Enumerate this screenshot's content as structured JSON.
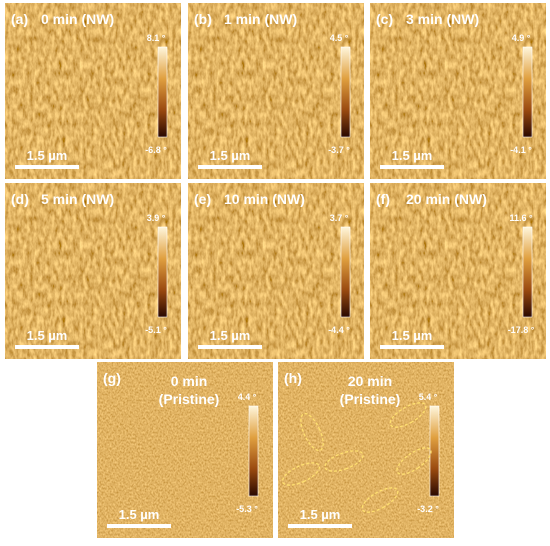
{
  "panels": [
    {
      "label": "(a)",
      "title": [
        "0 min (NW)"
      ],
      "max": "8.1 °",
      "min": "-6.8 °",
      "scale": "1.5 µm"
    },
    {
      "label": "(b)",
      "title": [
        "1 min (NW)"
      ],
      "max": "4.5 °",
      "min": "-3.7 °",
      "scale": "1.5 µm"
    },
    {
      "label": "(c)",
      "title": [
        "3 min (NW)"
      ],
      "max": "4.9 °",
      "min": "-4.1 °",
      "scale": "1.5 µm"
    },
    {
      "label": "(d)",
      "title": [
        "5 min (NW)"
      ],
      "max": "3.9 °",
      "min": "-5.1 °",
      "scale": "1.5 µm"
    },
    {
      "label": "(e)",
      "title": [
        "10 min (NW)"
      ],
      "max": "3.7 °",
      "min": "-4.4 °",
      "scale": "1.5 µm"
    },
    {
      "label": "(f)",
      "title": [
        "20 min (NW)"
      ],
      "max": "11.6 °",
      "min": "-17.8 °",
      "scale": "1.5 µm"
    },
    {
      "label": "(g)",
      "title": [
        "0 min",
        "(Pristine)"
      ],
      "max": "4.4 °",
      "min": "-5.3 °",
      "scale": "1.5 µm"
    },
    {
      "label": "(h)",
      "title": [
        "20 min",
        "(Pristine)"
      ],
      "max": "5.4 °",
      "min": "-3.2 °",
      "scale": "1.5 µm"
    }
  ]
}
